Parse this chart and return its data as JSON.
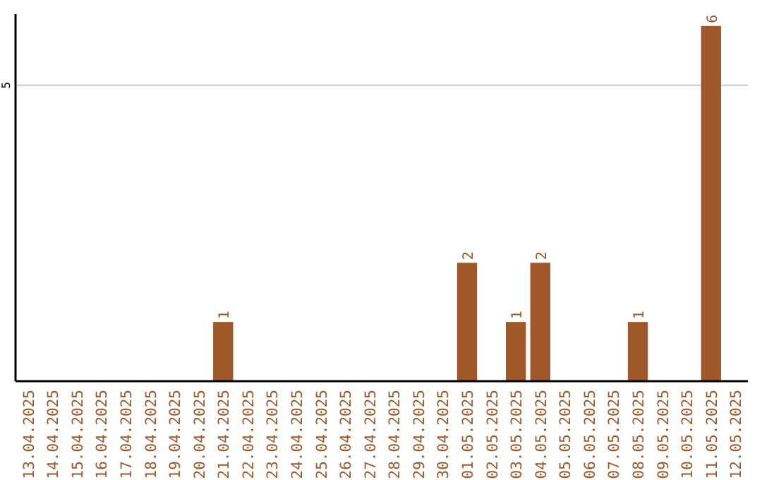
{
  "chart_data": {
    "type": "bar",
    "categories": [
      "13.04.2025",
      "14.04.2025",
      "15.04.2025",
      "16.04.2025",
      "17.04.2025",
      "18.04.2025",
      "19.04.2025",
      "20.04.2025",
      "21.04.2025",
      "22.04.2025",
      "23.04.2025",
      "24.04.2025",
      "25.04.2025",
      "26.04.2025",
      "27.04.2025",
      "28.04.2025",
      "29.04.2025",
      "30.04.2025",
      "01.05.2025",
      "02.05.2025",
      "03.05.2025",
      "04.05.2025",
      "05.05.2025",
      "06.05.2025",
      "07.05.2025",
      "08.05.2025",
      "09.05.2025",
      "10.05.2025",
      "11.05.2025",
      "12.05.2025"
    ],
    "values": [
      0,
      0,
      0,
      0,
      0,
      0,
      0,
      0,
      1,
      0,
      0,
      0,
      0,
      0,
      0,
      0,
      0,
      0,
      2,
      0,
      1,
      2,
      0,
      0,
      0,
      1,
      0,
      0,
      6,
      0
    ],
    "value_labels": [
      null,
      null,
      null,
      null,
      null,
      null,
      null,
      null,
      "1",
      null,
      null,
      null,
      null,
      null,
      null,
      null,
      null,
      null,
      "2",
      null,
      "1",
      "2",
      null,
      null,
      null,
      "1",
      null,
      null,
      "6",
      null
    ],
    "color": "#a0582a",
    "ylim": [
      0,
      6.2
    ],
    "yticks": [
      5
    ],
    "grid": "y"
  }
}
